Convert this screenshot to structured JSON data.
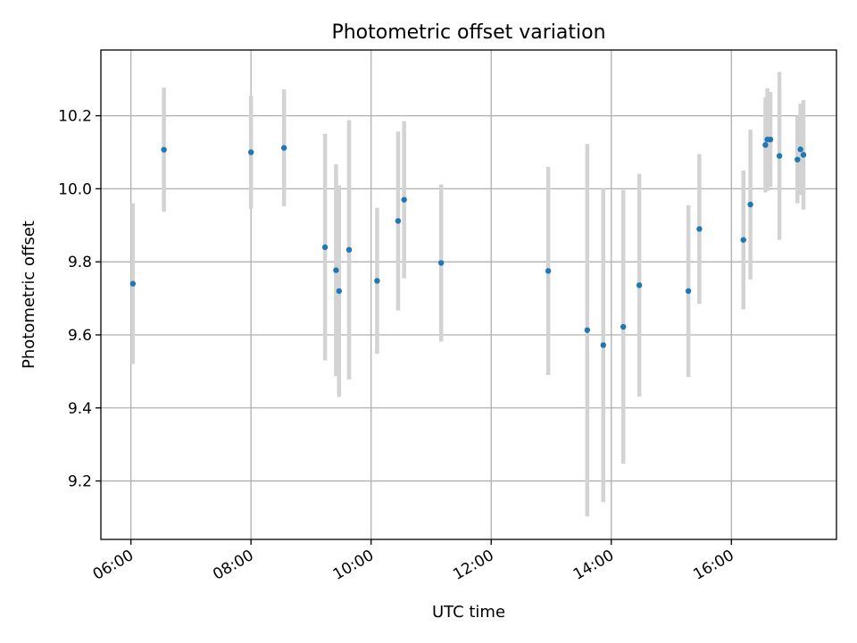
{
  "chart_data": {
    "type": "scatter",
    "title": "Photometric offset variation",
    "xlabel": "UTC time",
    "ylabel": "Photometric offset",
    "x_ticks": [
      "06:00",
      "08:00",
      "10:00",
      "12:00",
      "14:00",
      "16:00"
    ],
    "y_ticks": [
      "9.2",
      "9.4",
      "9.6",
      "9.8",
      "10.0",
      "10.2"
    ],
    "xlim": [
      "05:30",
      "17:45"
    ],
    "ylim": [
      9.04,
      10.38
    ],
    "grid": true,
    "colors": {
      "marker": "#1f77b4",
      "errorbar": "#d3d3d3",
      "grid": "#b0b0b0"
    },
    "series": [
      {
        "points": [
          {
            "time": "06:02",
            "y": 9.74,
            "yerr": 0.22
          },
          {
            "time": "06:33",
            "y": 10.107,
            "yerr": 0.17
          },
          {
            "time": "08:00",
            "y": 10.1,
            "yerr": 0.155
          },
          {
            "time": "08:33",
            "y": 10.112,
            "yerr": 0.16
          },
          {
            "time": "09:14",
            "y": 9.84,
            "yerr": 0.31
          },
          {
            "time": "09:25",
            "y": 9.777,
            "yerr": 0.29
          },
          {
            "time": "09:28",
            "y": 9.72,
            "yerr": 0.29
          },
          {
            "time": "09:38",
            "y": 9.833,
            "yerr": 0.355
          },
          {
            "time": "10:06",
            "y": 9.748,
            "yerr": 0.2
          },
          {
            "time": "10:27",
            "y": 9.912,
            "yerr": 0.245
          },
          {
            "time": "10:33",
            "y": 9.97,
            "yerr": 0.215
          },
          {
            "time": "11:10",
            "y": 9.797,
            "yerr": 0.215
          },
          {
            "time": "12:57",
            "y": 9.775,
            "yerr": 0.285
          },
          {
            "time": "13:36",
            "y": 9.613,
            "yerr": 0.51
          },
          {
            "time": "13:52",
            "y": 9.572,
            "yerr": 0.43
          },
          {
            "time": "14:12",
            "y": 9.622,
            "yerr": 0.375
          },
          {
            "time": "14:28",
            "y": 9.736,
            "yerr": 0.305
          },
          {
            "time": "15:17",
            "y": 9.72,
            "yerr": 0.235
          },
          {
            "time": "15:28",
            "y": 9.89,
            "yerr": 0.205
          },
          {
            "time": "16:12",
            "y": 9.86,
            "yerr": 0.19
          },
          {
            "time": "16:19",
            "y": 9.957,
            "yerr": 0.205
          },
          {
            "time": "16:34",
            "y": 10.12,
            "yerr": 0.13
          },
          {
            "time": "16:36",
            "y": 10.135,
            "yerr": 0.14
          },
          {
            "time": "16:39",
            "y": 10.135,
            "yerr": 0.13
          },
          {
            "time": "16:48",
            "y": 10.09,
            "yerr": 0.23
          },
          {
            "time": "17:06",
            "y": 10.08,
            "yerr": 0.12
          },
          {
            "time": "17:09",
            "y": 10.108,
            "yerr": 0.125
          },
          {
            "time": "17:12",
            "y": 10.093,
            "yerr": 0.15
          }
        ]
      }
    ]
  }
}
